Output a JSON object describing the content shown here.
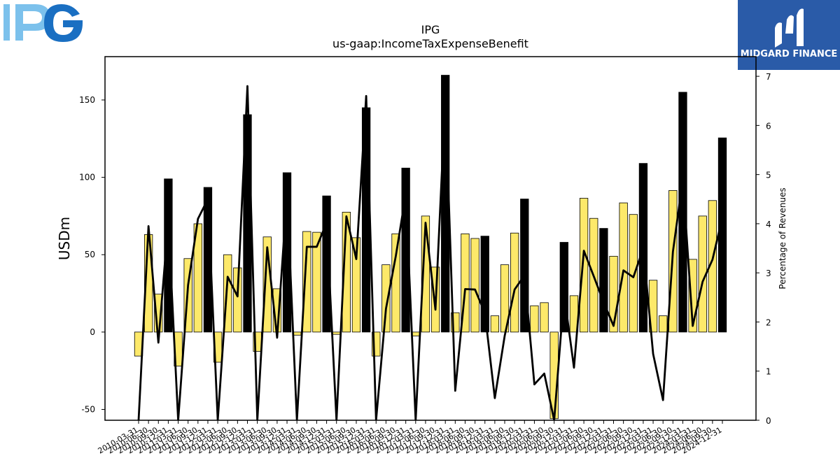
{
  "logo_text": "IPG",
  "brand": {
    "name": "MIDGARD FINANCE",
    "color": "#2a5ba8"
  },
  "chart_data": {
    "type": "bar",
    "title": "IPG",
    "subtitle": "us-gaap:IncomeTaxExpenseBenefit",
    "ylabel": "USDm",
    "y2label": "Percentage of Revenues",
    "ylim": [
      -57,
      178
    ],
    "y2lim": [
      0,
      7.4
    ],
    "yticks": [
      -50,
      0,
      50,
      100,
      150
    ],
    "y2ticks": [
      0,
      1,
      2,
      3,
      4,
      5,
      6,
      7
    ],
    "colors": {
      "quarterly": "#fde96a",
      "annual": "#000000",
      "line": "#000000"
    },
    "grid": false,
    "categories": [
      "2010-03-31",
      "2010-06-30",
      "2010-09-30",
      "2010-12-31",
      "2011-03-31",
      "2011-06-30",
      "2011-09-30",
      "2011-12-31",
      "2012-03-31",
      "2012-06-30",
      "2012-09-30",
      "2012-12-31",
      "2013-03-31",
      "2013-06-30",
      "2013-09-30",
      "2013-12-31",
      "2014-03-31",
      "2014-06-30",
      "2014-09-30",
      "2014-12-31",
      "2015-03-31",
      "2015-06-30",
      "2015-09-30",
      "2015-12-31",
      "2016-03-31",
      "2016-06-30",
      "2016-09-30",
      "2016-12-31",
      "2017-03-31",
      "2017-06-30",
      "2017-09-30",
      "2017-12-31",
      "2018-03-31",
      "2018-06-30",
      "2018-09-30",
      "2018-12-31",
      "2019-03-31",
      "2019-06-30",
      "2019-09-30",
      "2019-12-31",
      "2020-03-31",
      "2020-06-30",
      "2020-09-30",
      "2020-12-31",
      "2021-03-31",
      "2021-06-30",
      "2021-09-30",
      "2021-12-31",
      "2022-03-31",
      "2022-06-30",
      "2022-09-30",
      "2022-12-31",
      "2023-03-31",
      "2023-06-30",
      "2023-09-30",
      "2023-12-31",
      "2024-03-31",
      "2024-06-30",
      "2024-09-30",
      "2024-12-31"
    ],
    "visible_xtick_labels": [
      "2010-03-31",
      "2010-06-30",
      "2010-09-30",
      "2010-12-31",
      "2011-03-31",
      "2011-06-30",
      "2011-09-30",
      "2011-12-31",
      "2012-03-31",
      "2012-06-30",
      "2012-09-30",
      "2012-12-31",
      "2013-03-31",
      "2013-06-30",
      "2013-09-30",
      "2013-12-31",
      "2014-03-31",
      "2014-06-30",
      "2014-09-30",
      "2014-12-31",
      "2015-03-31",
      "2015-06-30",
      "2015-09-30",
      "2015-12-31",
      "2016-03-31",
      "2016-06-30",
      "2016-09-30",
      "2016-12-31",
      "2017-03-31",
      "2017-06-30",
      "2017-09-30",
      "2017-12-31",
      "2018-03-31",
      "2018-06-30",
      "2018-09-30",
      "2018-12-31",
      "2019-03-31",
      "2019-06-30",
      "2019-09-30",
      "2019-12-31",
      "2020-03-31",
      "2020-06-30",
      "2020-09-30",
      "2020-12-31",
      "2021-03-31",
      "2021-06-30",
      "2021-09-30",
      "2021-12-31",
      "2022-03-31",
      "2022-06-30",
      "2022-09-30",
      "2022-12-31",
      "2023-03-31",
      "2023-06-30",
      "2023-09-30",
      "2023-12-31",
      "2024-03-31",
      "2024-06-30",
      "2024-09-30",
      "2024-12-31"
    ],
    "series": [
      {
        "kind": "bar",
        "values": [
          -15.5,
          63,
          24.5,
          99,
          -22,
          47.5,
          70,
          93.5,
          -19.5,
          50,
          41.5,
          140.5,
          -12.5,
          61.5,
          28,
          103,
          -2,
          65,
          64.5,
          88,
          -1.5,
          77.5,
          61,
          145,
          -15.5,
          43.5,
          63.5,
          106,
          -2.5,
          75,
          42,
          166,
          12.5,
          63.5,
          60.5,
          62,
          10.5,
          43.5,
          64,
          86,
          17,
          19,
          -56,
          58,
          23.5,
          86.5,
          73.5,
          67,
          49,
          83.5,
          76,
          109,
          33.5,
          10.5,
          91.5,
          155,
          47,
          75,
          85,
          125.5
        ],
        "annual": [
          false,
          false,
          false,
          true,
          false,
          false,
          false,
          true,
          false,
          false,
          false,
          true,
          false,
          false,
          false,
          true,
          false,
          false,
          false,
          true,
          false,
          false,
          false,
          true,
          false,
          false,
          false,
          true,
          false,
          false,
          false,
          true,
          false,
          false,
          false,
          true,
          false,
          false,
          false,
          true,
          false,
          false,
          false,
          true,
          false,
          false,
          false,
          true,
          false,
          false,
          false,
          true,
          false,
          false,
          false,
          true,
          false,
          false,
          false,
          true
        ]
      },
      {
        "kind": "line",
        "axis": "right",
        "values": [
          0,
          3.95,
          1.58,
          4.05,
          0,
          2.75,
          4.1,
          4.5,
          0,
          2.92,
          2.52,
          6.8,
          0,
          3.52,
          1.68,
          4.6,
          0,
          3.53,
          3.53,
          4.02,
          0,
          4.15,
          3.28,
          6.6,
          0,
          2.27,
          3.35,
          4.6,
          0,
          4.02,
          2.25,
          6.55,
          0.6,
          2.67,
          2.66,
          2.18,
          0.45,
          1.72,
          2.66,
          2.95,
          0.73,
          0.95,
          0,
          2.57,
          1.07,
          3.45,
          2.93,
          2.4,
          1.92,
          3.05,
          2.91,
          3.5,
          1.35,
          0.41,
          3.43,
          4.9,
          1.92,
          2.82,
          3.27,
          4.13
        ]
      }
    ]
  }
}
